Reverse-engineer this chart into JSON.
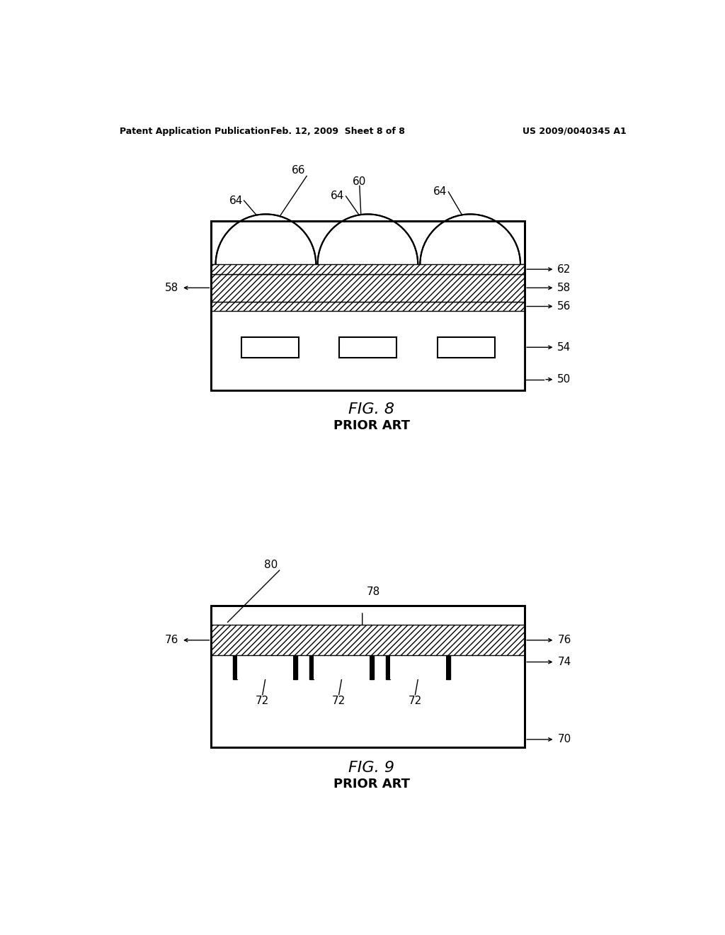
{
  "bg_color": "#ffffff",
  "header_left": "Patent Application Publication",
  "header_mid": "Feb. 12, 2009  Sheet 8 of 8",
  "header_right": "US 2009/0040345 A1"
}
